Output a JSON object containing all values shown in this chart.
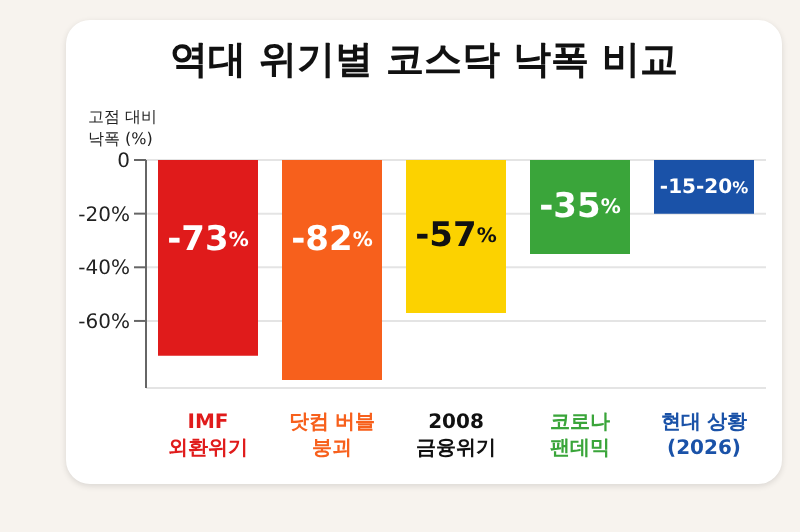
{
  "chart_data": {
    "type": "bar",
    "title": "역대 위기별 코스닥 낙폭 비교",
    "ylabel": "고점 대비\n낙폭 (%)",
    "categories": [
      "IMF\n외환위기",
      "닷컴 버블\n붕괴",
      "2008\n금융위기",
      "코로나\n팬데믹",
      "현대 상황\n(2026)"
    ],
    "values": [
      -73,
      -82,
      -57,
      -35,
      -20
    ],
    "value_labels": [
      "-73%",
      "-82%",
      "-57%",
      "-35%",
      "-15-20%"
    ],
    "colors": [
      "#e01b1b",
      "#f7601c",
      "#fcd200",
      "#3aa53a",
      "#1a52a8"
    ],
    "ylim": [
      -85,
      0
    ],
    "yticks": [
      0,
      {
        "value": -20,
        "label": "-20%"
      },
      {
        "value": -40,
        "label": "-40%"
      },
      {
        "value": -60,
        "label": "-60%"
      }
    ],
    "grid": "y"
  }
}
